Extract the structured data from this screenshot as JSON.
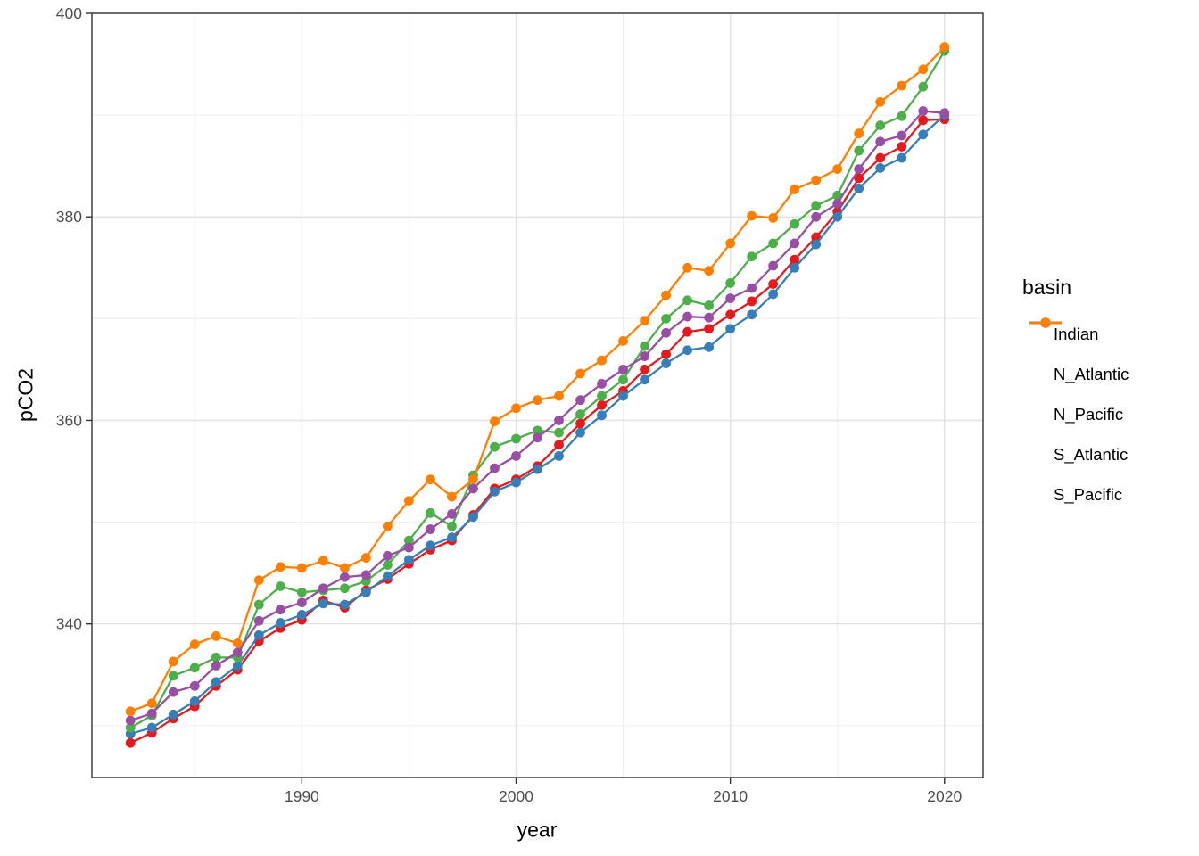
{
  "chart_data": {
    "type": "line",
    "title": "",
    "xlabel": "year",
    "ylabel": "pCO2",
    "legend_title": "basin",
    "legend_position": "right",
    "grid": true,
    "panel_border": true,
    "xlim": [
      1980.2,
      2021.8
    ],
    "ylim": [
      324.9,
      400
    ],
    "x_ticks": [
      1990,
      2000,
      2010,
      2020
    ],
    "y_ticks": [
      340,
      360,
      380,
      400
    ],
    "x_minor": [
      1985,
      1995,
      2005,
      2015
    ],
    "y_minor": [
      330,
      350,
      370,
      390
    ],
    "style": {
      "grid_major_color": "#e4e4e4",
      "grid_minor_color": "#f1f1f1",
      "panel_border_color": "#333333",
      "tick_color": "#333333",
      "tick_label_color": "#4d4d4d",
      "point_radius": 5.4,
      "line_width": 2.3
    },
    "x": [
      1982,
      1983,
      1984,
      1985,
      1986,
      1987,
      1988,
      1989,
      1990,
      1991,
      1992,
      1993,
      1994,
      1995,
      1996,
      1997,
      1998,
      1999,
      2000,
      2001,
      2002,
      2003,
      2004,
      2005,
      2006,
      2007,
      2008,
      2009,
      2010,
      2011,
      2012,
      2013,
      2014,
      2015,
      2016,
      2017,
      2018,
      2019,
      2020
    ],
    "series": [
      {
        "name": "Indian",
        "color": "#E41A1C",
        "values": [
          328.3,
          329.3,
          330.7,
          331.9,
          333.9,
          335.5,
          338.3,
          339.6,
          340.4,
          342.3,
          341.6,
          343.3,
          344.4,
          345.9,
          347.3,
          348.2,
          350.7,
          353.3,
          354.2,
          355.5,
          357.6,
          359.7,
          361.5,
          362.9,
          365.0,
          366.5,
          368.7,
          369.0,
          370.4,
          371.7,
          373.4,
          375.8,
          378.0,
          380.5,
          383.8,
          385.8,
          386.9,
          389.5,
          389.6
        ]
      },
      {
        "name": "N_Atlantic",
        "color": "#377EB8",
        "values": [
          329.2,
          329.8,
          331.1,
          332.4,
          334.3,
          335.9,
          338.9,
          340.1,
          340.9,
          342.0,
          341.9,
          343.1,
          344.7,
          346.3,
          347.7,
          348.5,
          350.5,
          353.0,
          353.9,
          355.2,
          356.5,
          358.8,
          360.5,
          362.4,
          364.0,
          365.6,
          366.9,
          367.2,
          369.0,
          370.4,
          372.4,
          375.0,
          377.3,
          380.0,
          382.8,
          384.8,
          385.8,
          388.1,
          390.0
        ]
      },
      {
        "name": "N_Pacific",
        "color": "#4DAF4A",
        "values": [
          329.8,
          331.0,
          334.9,
          335.7,
          336.7,
          336.7,
          341.9,
          343.7,
          343.1,
          343.3,
          343.5,
          344.2,
          345.8,
          348.2,
          350.9,
          349.6,
          354.6,
          357.4,
          358.2,
          359.0,
          358.8,
          360.6,
          362.4,
          364.0,
          367.3,
          370.0,
          371.8,
          371.3,
          373.5,
          376.1,
          377.4,
          379.3,
          381.1,
          382.1,
          386.5,
          389.0,
          389.9,
          392.8,
          396.3
        ]
      },
      {
        "name": "S_Atlantic",
        "color": "#984EA3",
        "values": [
          330.5,
          331.2,
          333.3,
          333.9,
          335.9,
          337.2,
          340.3,
          341.4,
          342.1,
          343.5,
          344.6,
          344.8,
          346.7,
          347.5,
          349.3,
          350.8,
          353.3,
          355.3,
          356.5,
          358.3,
          360.0,
          362.0,
          363.6,
          365.0,
          366.3,
          368.6,
          370.2,
          370.1,
          372.0,
          373.0,
          375.2,
          377.4,
          380.0,
          381.3,
          384.7,
          387.4,
          388.0,
          390.4,
          390.2
        ]
      },
      {
        "name": "S_Pacific",
        "color": "#FF7F00",
        "values": [
          331.4,
          332.2,
          336.3,
          338.0,
          338.8,
          338.1,
          344.3,
          345.6,
          345.5,
          346.2,
          345.5,
          346.5,
          349.6,
          352.1,
          354.2,
          352.5,
          354.2,
          359.9,
          361.2,
          362.0,
          362.4,
          364.6,
          365.9,
          367.8,
          369.8,
          372.3,
          375.0,
          374.7,
          377.4,
          380.1,
          379.9,
          382.7,
          383.6,
          384.7,
          388.2,
          391.3,
          392.9,
          394.5,
          396.7
        ]
      }
    ]
  }
}
